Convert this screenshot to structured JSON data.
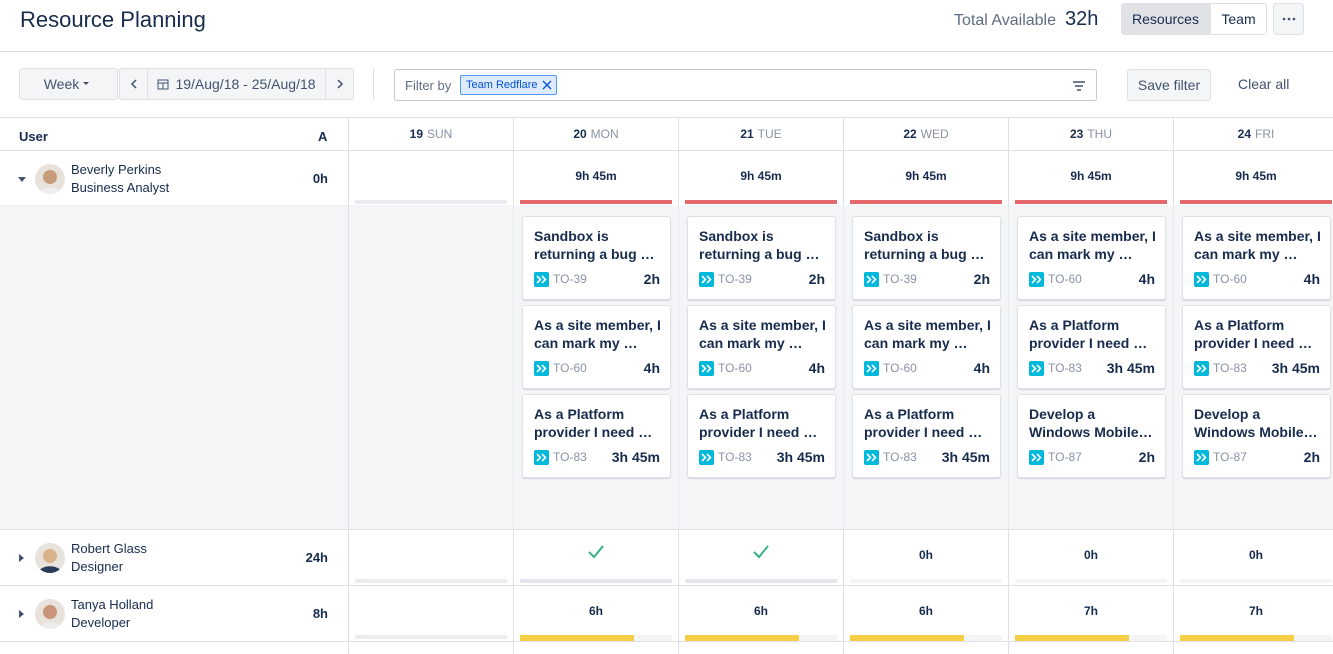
{
  "header": {
    "title": "Resource Planning",
    "total_label": "Total Available",
    "total_value": "32h",
    "tabs": [
      "Resources",
      "Team"
    ]
  },
  "toolbar": {
    "period": "Week",
    "date_range": "19/Aug/18 - 25/Aug/18",
    "filter_label": "Filter by",
    "filter_tag": "Team Redflare",
    "save_filter": "Save filter",
    "clear_all": "Clear all"
  },
  "grid": {
    "user_header": "User",
    "available_header": "A",
    "days": [
      {
        "number": "19",
        "name": "SUN"
      },
      {
        "number": "20",
        "name": "MON"
      },
      {
        "number": "21",
        "name": "TUE"
      },
      {
        "number": "22",
        "name": "WED"
      },
      {
        "number": "23",
        "name": "THU"
      },
      {
        "number": "24",
        "name": "FRI"
      }
    ]
  },
  "users": [
    {
      "name": "Beverly Perkins",
      "role": "Business Analyst",
      "available": "0h",
      "daily": [
        null,
        "9h 45m",
        "9h 45m",
        "9h 45m",
        "9h 45m",
        "9h 45m"
      ],
      "tasks": [
        [],
        [
          {
            "title": "Sandbox is returning a bug …",
            "key": "TO-39",
            "hours": "2h"
          },
          {
            "title": "As a site member, I can mark my …",
            "key": "TO-60",
            "hours": "4h"
          },
          {
            "title": "As a Platform provider I need …",
            "key": "TO-83",
            "hours": "3h 45m"
          }
        ],
        [
          {
            "title": "Sandbox is returning a bug …",
            "key": "TO-39",
            "hours": "2h"
          },
          {
            "title": "As a site member, I can mark my …",
            "key": "TO-60",
            "hours": "4h"
          },
          {
            "title": "As a Platform provider I need …",
            "key": "TO-83",
            "hours": "3h 45m"
          }
        ],
        [
          {
            "title": "Sandbox is returning a bug …",
            "key": "TO-39",
            "hours": "2h"
          },
          {
            "title": "As a site member, I can mark my …",
            "key": "TO-60",
            "hours": "4h"
          },
          {
            "title": "As a Platform provider I need …",
            "key": "TO-83",
            "hours": "3h 45m"
          }
        ],
        [
          {
            "title": "As a site member, I can mark my …",
            "key": "TO-60",
            "hours": "4h"
          },
          {
            "title": "As a Platform provider I need …",
            "key": "TO-83",
            "hours": "3h 45m"
          },
          {
            "title": "Develop a Windows Mobile…",
            "key": "TO-87",
            "hours": "2h"
          }
        ],
        [
          {
            "title": "As a site member, I can mark my …",
            "key": "TO-60",
            "hours": "4h"
          },
          {
            "title": "As a Platform provider I need …",
            "key": "TO-83",
            "hours": "3h 45m"
          },
          {
            "title": "Develop a Windows Mobile…",
            "key": "TO-87",
            "hours": "2h"
          }
        ]
      ]
    },
    {
      "name": "Robert Glass",
      "role": "Designer",
      "available": "24h",
      "daily": [
        null,
        null,
        null,
        "0h",
        "0h",
        "0h"
      ]
    },
    {
      "name": "Tanya Holland",
      "role": "Developer",
      "available": "8h",
      "daily": [
        null,
        "6h",
        "6h",
        "6h",
        "7h",
        "7h"
      ]
    }
  ]
}
